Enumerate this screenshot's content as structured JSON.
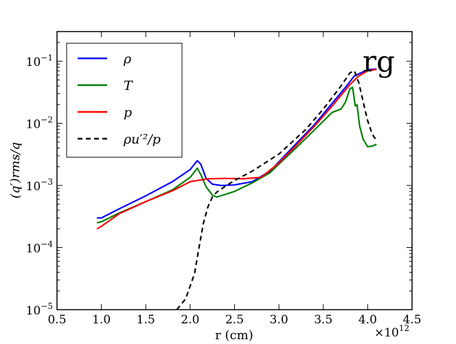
{
  "chart_data": {
    "type": "line",
    "title": "",
    "annotation": "rg",
    "xlabel": "r (cm)",
    "ylabel": "(q′)rms/q",
    "x_multiplier": "×10",
    "x_multiplier_exp": "12",
    "xlim": [
      0.5,
      4.5
    ],
    "ylim": [
      1e-05,
      0.3
    ],
    "yscale": "log",
    "x_ticks": [
      0.5,
      1.0,
      1.5,
      2.0,
      2.5,
      3.0,
      3.5,
      4.0,
      4.5
    ],
    "x_tick_labels": [
      "0.5",
      "1.0",
      "1.5",
      "2.0",
      "2.5",
      "3.0",
      "3.5",
      "4.0",
      "4.5"
    ],
    "y_ticks": [
      1e-05,
      0.0001,
      0.001,
      0.01,
      0.1
    ],
    "y_tick_labels": [
      {
        "base": "10",
        "exp": "−5"
      },
      {
        "base": "10",
        "exp": "−4"
      },
      {
        "base": "10",
        "exp": "−3"
      },
      {
        "base": "10",
        "exp": "−2"
      },
      {
        "base": "10",
        "exp": "−1"
      }
    ],
    "legend_position": "top-left",
    "series": [
      {
        "name": "ρ",
        "color": "#0000ff",
        "dash": "solid",
        "x": [
          0.95,
          1.0,
          1.2,
          1.5,
          1.8,
          2.0,
          2.08,
          2.12,
          2.18,
          2.25,
          2.35,
          2.5,
          2.7,
          2.9,
          3.0,
          3.2,
          3.4,
          3.6,
          3.75,
          3.85,
          4.0,
          4.1
        ],
        "y": [
          0.0003,
          0.0003,
          0.00042,
          0.00068,
          0.00115,
          0.0018,
          0.0025,
          0.0022,
          0.0013,
          0.00105,
          0.001,
          0.00102,
          0.00115,
          0.0017,
          0.0024,
          0.0048,
          0.0095,
          0.021,
          0.038,
          0.058,
          0.073,
          0.075
        ]
      },
      {
        "name": "T",
        "color": "#008000",
        "dash": "solid",
        "x": [
          0.95,
          1.0,
          1.2,
          1.5,
          1.8,
          2.0,
          2.08,
          2.12,
          2.18,
          2.25,
          2.3,
          2.5,
          2.7,
          2.9,
          3.0,
          3.2,
          3.4,
          3.6,
          3.7,
          3.75,
          3.8,
          3.83,
          3.86,
          3.88,
          3.91,
          3.95,
          4.0,
          4.05,
          4.1
        ],
        "y": [
          0.00025,
          0.00026,
          0.00036,
          0.00055,
          0.00085,
          0.00135,
          0.0019,
          0.0015,
          0.00095,
          0.0007,
          0.00065,
          0.0008,
          0.0011,
          0.0016,
          0.0022,
          0.0041,
          0.0078,
          0.015,
          0.017,
          0.022,
          0.036,
          0.038,
          0.019,
          0.02,
          0.009,
          0.0055,
          0.0042,
          0.0043,
          0.0046
        ]
      },
      {
        "name": "p",
        "color": "#ff0000",
        "dash": "solid",
        "x": [
          0.95,
          1.0,
          1.2,
          1.5,
          1.8,
          2.0,
          2.2,
          2.4,
          2.6,
          2.8,
          3.0,
          3.2,
          3.4,
          3.6,
          3.8,
          3.9,
          4.0,
          4.1
        ],
        "y": [
          0.0002,
          0.00022,
          0.00035,
          0.00055,
          0.00082,
          0.00115,
          0.00128,
          0.0013,
          0.00128,
          0.00135,
          0.0023,
          0.0045,
          0.009,
          0.019,
          0.042,
          0.058,
          0.07,
          0.074
        ]
      },
      {
        "name": "ρu′²/p",
        "color": "#000000",
        "dash": "dashed",
        "x": [
          1.85,
          1.95,
          2.05,
          2.1,
          2.15,
          2.2,
          2.25,
          2.3,
          2.4,
          2.5,
          2.7,
          3.0,
          3.3,
          3.5,
          3.7,
          3.8,
          3.85,
          3.9,
          3.95,
          4.0,
          4.05,
          4.1
        ],
        "y": [
          1e-05,
          1.5e-05,
          3.8e-05,
          0.0001,
          0.00025,
          0.00045,
          0.00065,
          0.00078,
          0.00098,
          0.0012,
          0.0017,
          0.0032,
          0.0079,
          0.017,
          0.04,
          0.065,
          0.07,
          0.045,
          0.022,
          0.011,
          0.0068,
          0.0052
        ]
      }
    ]
  }
}
